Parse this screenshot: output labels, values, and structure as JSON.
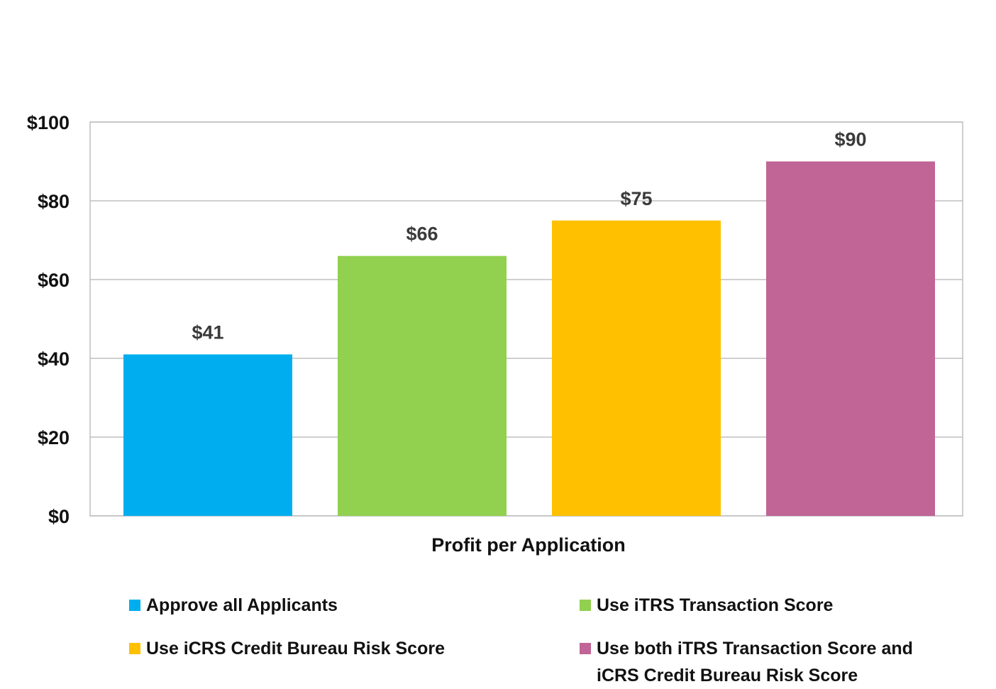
{
  "chart_data": {
    "type": "bar",
    "categories": [
      "Profit per Application"
    ],
    "xlabel": "Profit per Application",
    "ylim": [
      0,
      100
    ],
    "yticks": [
      "$0",
      "$20",
      "$40",
      "$60",
      "$80",
      "$100"
    ],
    "ytick_values": [
      0,
      20,
      40,
      60,
      80,
      100
    ],
    "grid": true,
    "legend_position": "bottom",
    "series": [
      {
        "name": "Approve all Applicants",
        "value": 41,
        "label": "$41",
        "color": "#00AEEF"
      },
      {
        "name": "Use iTRS Transaction Score",
        "value": 66,
        "label": "$66",
        "color": "#92D050"
      },
      {
        "name": "Use iCRS Credit Bureau Risk Score",
        "value": 75,
        "label": "$75",
        "color": "#FFC000"
      },
      {
        "name": "Use both iTRS Transaction Score and\niCRS Credit Bureau Risk Score",
        "value": 90,
        "label": "$90",
        "color": "#C06595"
      }
    ]
  }
}
